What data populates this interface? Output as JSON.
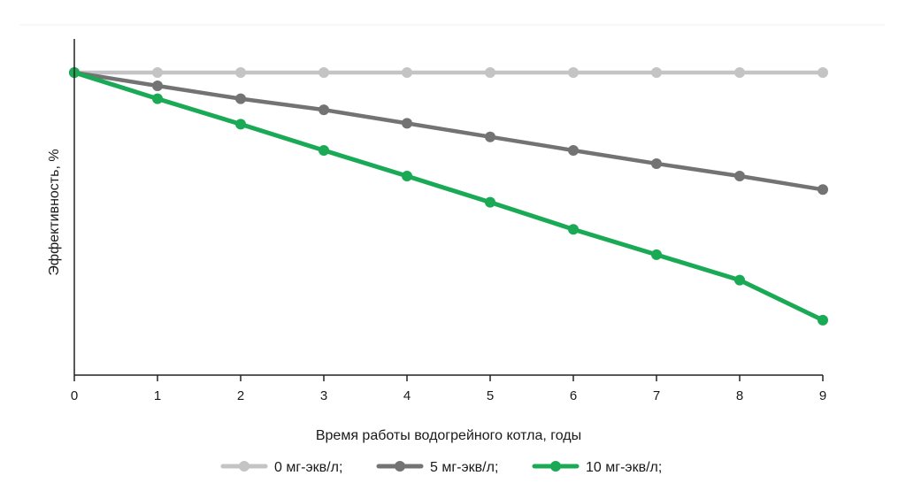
{
  "chart_data": {
    "type": "line",
    "title": "",
    "xlabel": "Время работы водогрейного котла, годы",
    "ylabel": "Эффективность, %",
    "x": [
      0,
      1,
      2,
      3,
      4,
      5,
      6,
      7,
      8,
      9
    ],
    "xlim": [
      0,
      9
    ],
    "ylim": [
      0,
      100
    ],
    "y_ticks_shown": false,
    "grid": false,
    "legend_position": "bottom",
    "series": [
      {
        "name": "0 мг-экв/л;",
        "color": "#c4c4c4",
        "values": [
          100,
          100,
          100,
          100,
          100,
          100,
          100,
          100,
          100,
          100
        ]
      },
      {
        "name": "5 мг-экв/л;",
        "color": "#737373",
        "values": [
          100,
          95.2,
          90.5,
          86.5,
          81.6,
          76.7,
          71.8,
          67,
          62.5,
          57.6
        ]
      },
      {
        "name": "10 мг-экв/л;",
        "color": "#1aaa55",
        "values": [
          100,
          90.5,
          81.3,
          71.8,
          62.5,
          53,
          43.2,
          34,
          24.8,
          10.3
        ]
      }
    ]
  }
}
